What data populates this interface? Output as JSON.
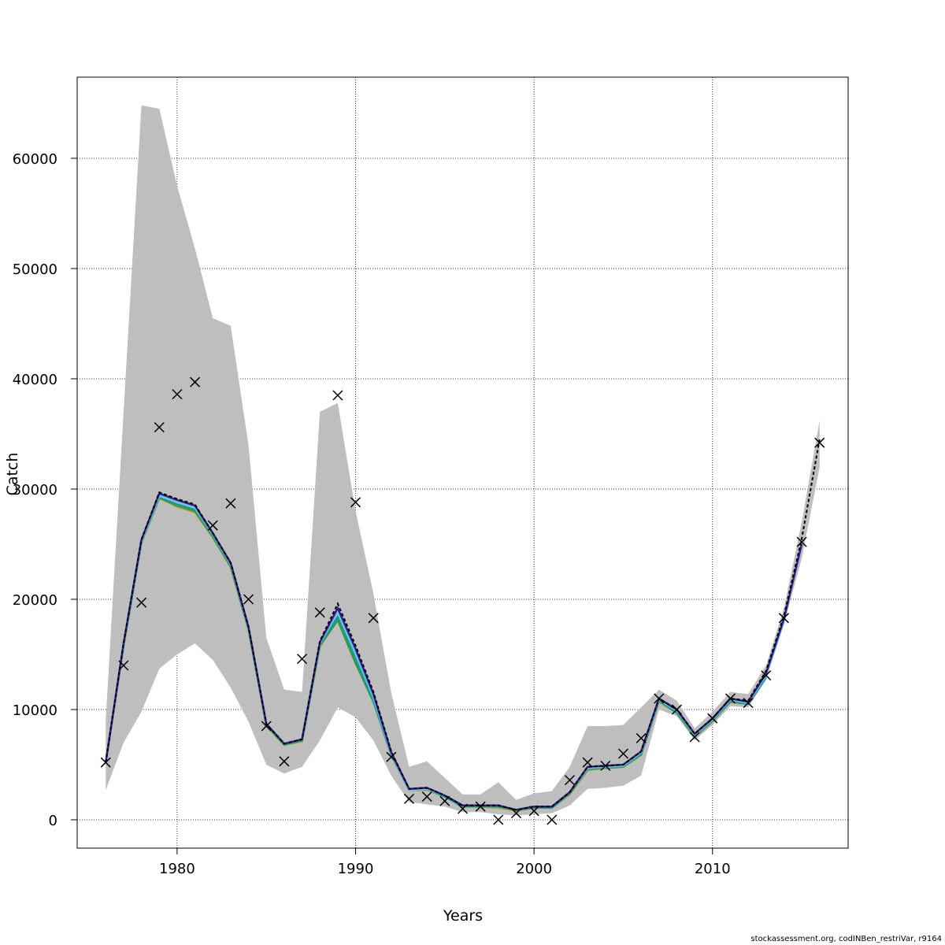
{
  "chart_data": {
    "type": "line",
    "title": "",
    "xlabel": "Years",
    "ylabel": "Catch",
    "xlim": [
      1974.4,
      2017.6
    ],
    "ylim": [
      -2571,
      67357
    ],
    "xticks": [
      1980,
      1990,
      2000,
      2010
    ],
    "yticks": [
      0,
      10000,
      20000,
      30000,
      40000,
      50000,
      60000
    ],
    "grid": true,
    "x_start": 1976,
    "band_color": "#bebebe",
    "band_upper": [
      9000,
      37000,
      64800,
      64500,
      57500,
      51800,
      45500,
      44800,
      34000,
      16500,
      11800,
      11600,
      37000,
      37800,
      28000,
      20500,
      11500,
      4800,
      5300,
      3800,
      2300,
      2300,
      3400,
      1800,
      2400,
      2600,
      4800,
      8500,
      8500,
      8600,
      10200,
      11800,
      10800,
      8300,
      9800,
      11600,
      11400,
      14000,
      19200,
      27000,
      36200
    ],
    "band_lower": [
      2700,
      7000,
      9800,
      13700,
      15000,
      16000,
      14500,
      12000,
      8900,
      5000,
      4200,
      4800,
      7200,
      10200,
      9300,
      7200,
      4000,
      1600,
      1400,
      1200,
      700,
      700,
      500,
      400,
      500,
      600,
      1300,
      2800,
      2900,
      3100,
      4000,
      10000,
      9400,
      7200,
      8600,
      10300,
      10200,
      12700,
      17700,
      23700,
      32000
    ],
    "observed": [
      5200,
      14000,
      19700,
      35600,
      38600,
      39700,
      26700,
      28700,
      20000,
      8500,
      5300,
      14600,
      18800,
      38500,
      28800,
      18300,
      5700,
      1900,
      2100,
      1700,
      1000,
      1200,
      0,
      600,
      800,
      0,
      3600,
      5200,
      4900,
      6000,
      7400,
      11000,
      10000,
      7500,
      9200,
      11000,
      10600,
      13100,
      18300,
      25200,
      34200
    ],
    "fit": {
      "color": "#000000",
      "values": [
        5200,
        16000,
        25400,
        29700,
        29100,
        28600,
        26000,
        23300,
        17500,
        8700,
        6900,
        7300,
        16200,
        19600,
        15800,
        11600,
        6200,
        2800,
        2900,
        2200,
        1300,
        1300,
        1300,
        900,
        1200,
        1200,
        2500,
        4800,
        4900,
        5000,
        6200,
        11000,
        10000,
        7800,
        9200,
        11000,
        10800,
        13500,
        18500,
        25500,
        34500
      ]
    },
    "retro_series": [
      {
        "color": "#2e1f8f",
        "values": [
          5200,
          16000,
          25400,
          29600,
          29000,
          28500,
          26000,
          23300,
          17500,
          8700,
          6900,
          7300,
          16100,
          19200,
          15500,
          11400,
          6100,
          2800,
          2900,
          2200,
          1300,
          1300,
          1300,
          900,
          1200,
          1200,
          2500,
          4800,
          4900,
          5000,
          6200,
          11000,
          10000,
          7800,
          9200,
          11000,
          10700,
          13300,
          18200,
          25000
        ]
      },
      {
        "color": "#6ec6e8",
        "values": [
          5200,
          15900,
          25300,
          29400,
          28800,
          28300,
          25900,
          23200,
          17400,
          8700,
          6900,
          7300,
          16000,
          18800,
          15100,
          11100,
          6000,
          2700,
          2800,
          2200,
          1300,
          1300,
          1300,
          900,
          1200,
          1200,
          2500,
          4700,
          4800,
          4900,
          6100,
          10900,
          9900,
          7700,
          9100,
          10900,
          10600,
          13100,
          18000
        ]
      },
      {
        "color": "#1a9a8a",
        "values": [
          5200,
          15800,
          25200,
          29300,
          28600,
          28200,
          25800,
          23100,
          17300,
          8600,
          6900,
          7200,
          15900,
          18400,
          14600,
          10800,
          5900,
          2700,
          2800,
          2100,
          1200,
          1300,
          1200,
          900,
          1100,
          1100,
          2400,
          4600,
          4800,
          4900,
          6000,
          10800,
          9800,
          7600,
          9000,
          10800,
          10500,
          12900
        ]
      },
      {
        "color": "#3a9a3a",
        "values": [
          5200,
          15800,
          25200,
          29200,
          28500,
          28000,
          25700,
          23000,
          17300,
          8600,
          6800,
          7200,
          15800,
          18100,
          14200,
          10700,
          5900,
          2700,
          2800,
          2100,
          1200,
          1200,
          1200,
          900,
          1100,
          1100,
          2400,
          4600,
          4700,
          4800,
          5900,
          10800,
          9700,
          7600,
          9000,
          10700,
          10500
        ]
      },
      {
        "color": "#a5a532",
        "values": [
          5100,
          15700,
          25100,
          29200,
          28400,
          27900,
          25600,
          22900,
          17200,
          8500,
          6800,
          7100,
          15700,
          18200,
          14400,
          10800,
          5900,
          2700,
          2700,
          2100,
          1200,
          1200,
          1100,
          800,
          1100,
          1100,
          2300,
          4500,
          4700,
          4800,
          5900,
          10700,
          9700,
          7500,
          8900,
          10800
        ]
      }
    ]
  },
  "footer": "stockassessment.org, codINBen_restriVar, r9164"
}
